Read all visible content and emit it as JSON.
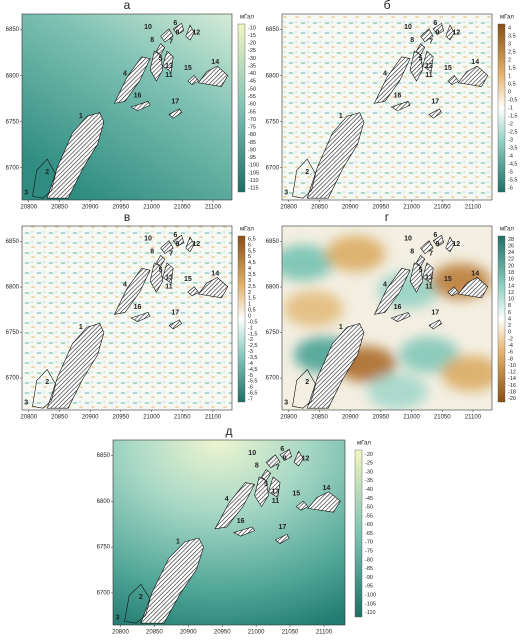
{
  "axes": {
    "xticks": [
      20800,
      20850,
      20900,
      20950,
      21000,
      21050,
      21100
    ],
    "yticks": [
      6700,
      6750,
      6800,
      6850
    ],
    "xlim": [
      20789,
      21131
    ],
    "ylim": [
      6665,
      6867
    ]
  },
  "regions": [
    "1",
    "2",
    "3",
    "4",
    "5",
    "6",
    "7",
    "8",
    "9",
    "10",
    "11",
    "12",
    "13",
    "14",
    "15",
    "16",
    "17"
  ],
  "panels": [
    {
      "label": "а",
      "unit": "мГал",
      "colorbar": [
        "-10",
        "-15",
        "-20",
        "-25",
        "-30",
        "-35",
        "-40",
        "-45",
        "-50",
        "-55",
        "-60",
        "-65",
        "-70",
        "-75",
        "-80",
        "-85",
        "-90",
        "-95",
        "-100",
        "-105",
        "-110",
        "-115"
      ]
    },
    {
      "label": "б",
      "unit": "мГал",
      "colorbar": [
        "4",
        "3,5",
        "3",
        "2,5",
        "2",
        "1,5",
        "1",
        "0,5",
        "0",
        "-0,5",
        "-1",
        "-1,5",
        "-2",
        "-2,5",
        "-3",
        "-3,5",
        "-4",
        "-4,5",
        "-5",
        "-5,5",
        "-6"
      ]
    },
    {
      "label": "в",
      "unit": "мГал",
      "colorbar": [
        "6,5",
        "6",
        "5,5",
        "5",
        "4,5",
        "4",
        "3,5",
        "3",
        "2,5",
        "2",
        "1,5",
        "1",
        "0,5",
        "0",
        "-0,5",
        "-1",
        "-1,5",
        "-2",
        "-2,5",
        "-3",
        "-3,5",
        "-4",
        "-4,5",
        "-5",
        "-5,5",
        "-6",
        "-6,5",
        "-7"
      ]
    },
    {
      "label": "г",
      "unit": "мГал",
      "colorbar": [
        "28",
        "26",
        "24",
        "22",
        "20",
        "18",
        "16",
        "14",
        "12",
        "10",
        "8",
        "6",
        "4",
        "2",
        "0",
        "-2",
        "-4",
        "-6",
        "-8",
        "-10",
        "-12",
        "-14",
        "-16",
        "-18",
        "-20"
      ]
    },
    {
      "label": "д",
      "unit": "мГал",
      "colorbar": [
        "-20",
        "-25",
        "-30",
        "-35",
        "-40",
        "-45",
        "-50",
        "-55",
        "-60",
        "-65",
        "-70",
        "-75",
        "-80",
        "-85",
        "-90",
        "-95",
        "-100",
        "-105",
        "-110"
      ]
    }
  ]
}
